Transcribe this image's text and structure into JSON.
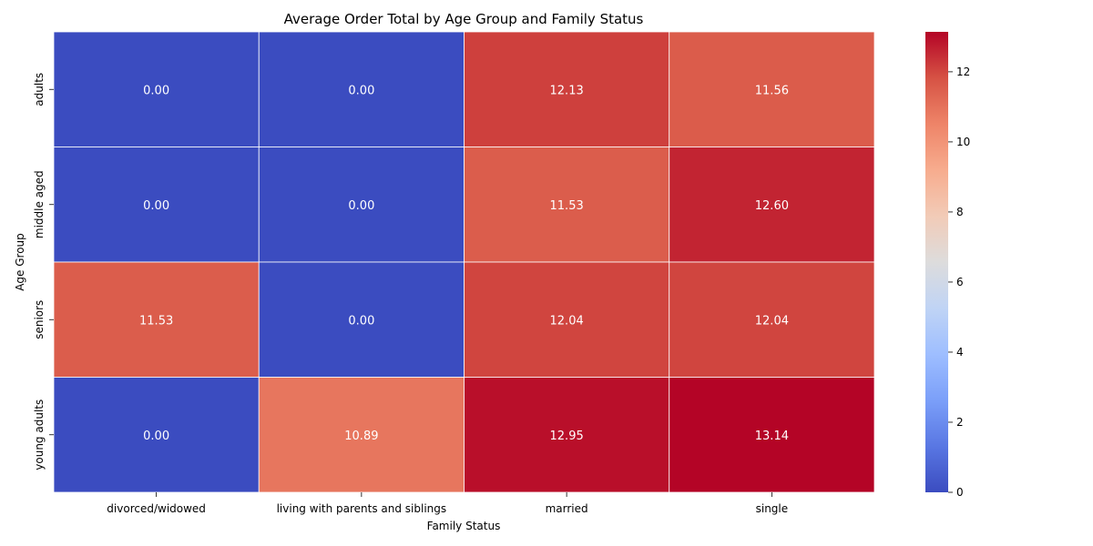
{
  "chart_data": {
    "type": "heatmap",
    "title": "Average Order Total by Age Group and Family Status",
    "xlabel": "Family Status",
    "ylabel": "Age Group",
    "x_categories": [
      "divorced/widowed",
      "living with parents and siblings",
      "married",
      "single"
    ],
    "y_categories": [
      "adults",
      "middle aged",
      "seniors",
      "young adults"
    ],
    "values": [
      [
        0.0,
        0.0,
        12.13,
        11.56
      ],
      [
        0.0,
        0.0,
        11.53,
        12.6
      ],
      [
        11.53,
        0.0,
        12.04,
        12.04
      ],
      [
        0.0,
        10.89,
        12.95,
        13.14
      ]
    ],
    "cell_labels": [
      [
        "0.00",
        "0.00",
        "12.13",
        "11.56"
      ],
      [
        "0.00",
        "0.00",
        "11.53",
        "12.60"
      ],
      [
        "11.53",
        "0.00",
        "12.04",
        "12.04"
      ],
      [
        "0.00",
        "10.89",
        "12.95",
        "13.14"
      ]
    ],
    "colormap": "coolwarm",
    "colorbar": {
      "range": [
        0,
        13.14
      ],
      "ticks": [
        0,
        2,
        4,
        6,
        8,
        10,
        12
      ],
      "tick_labels": [
        "0",
        "2",
        "4",
        "6",
        "8",
        "10",
        "12"
      ]
    },
    "colors": [
      "#3b4cc0",
      "#5977e3",
      "#7b9ff9",
      "#9ebeff",
      "#c0d4f5",
      "#dddcdc",
      "#f2cbb7",
      "#f7ac8e",
      "#ee8468",
      "#d65244",
      "#b40426"
    ]
  }
}
